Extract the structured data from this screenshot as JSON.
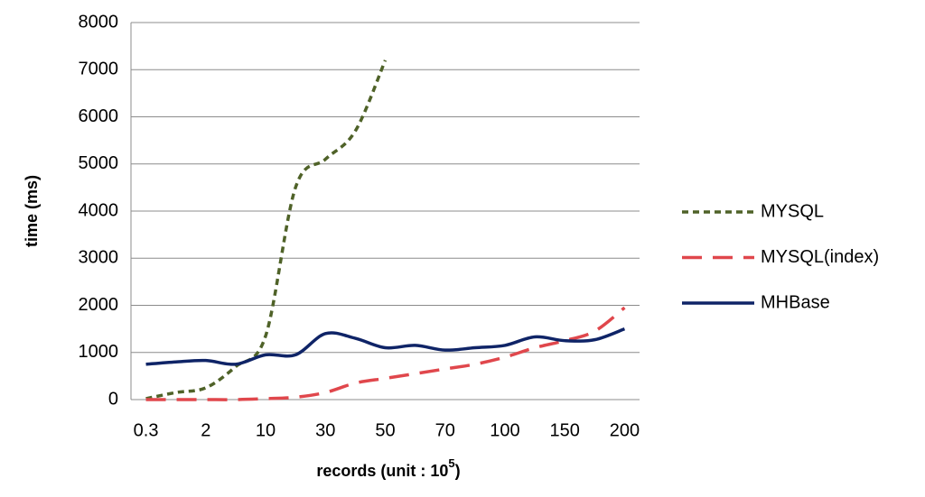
{
  "chart_data": {
    "type": "line",
    "ylabel": "time (ms)",
    "xlabel": "records (unit : 10",
    "xlabel_exponent": "5",
    "categories": [
      "0.3",
      null,
      "2",
      null,
      "10",
      null,
      "30",
      null,
      "50",
      null,
      "70",
      null,
      "100",
      null,
      "150",
      null,
      "200"
    ],
    "ylim": [
      0,
      8000
    ],
    "yticks": [
      0,
      1000,
      2000,
      3000,
      4000,
      5000,
      6000,
      7000,
      8000
    ],
    "grid": true,
    "legend": "right",
    "series": [
      {
        "name": "MYSQL",
        "color": "#4f6228",
        "dash": "short",
        "values": [
          20,
          150,
          250,
          700,
          1350,
          4500,
          5100,
          5700,
          7200,
          null,
          null,
          null,
          null,
          null,
          null,
          null,
          null
        ]
      },
      {
        "name": "MYSQL(index)",
        "color": "#e0474c",
        "dash": "long",
        "values": [
          0,
          0,
          0,
          0,
          20,
          50,
          150,
          350,
          450,
          550,
          650,
          750,
          900,
          1100,
          1250,
          1450,
          1950
        ]
      },
      {
        "name": "MHBase",
        "color": "#0f2467",
        "dash": "solid",
        "values": [
          750,
          800,
          830,
          750,
          950,
          950,
          1400,
          1300,
          1100,
          1150,
          1050,
          1100,
          1150,
          1330,
          1250,
          1270,
          1500
        ]
      }
    ]
  }
}
